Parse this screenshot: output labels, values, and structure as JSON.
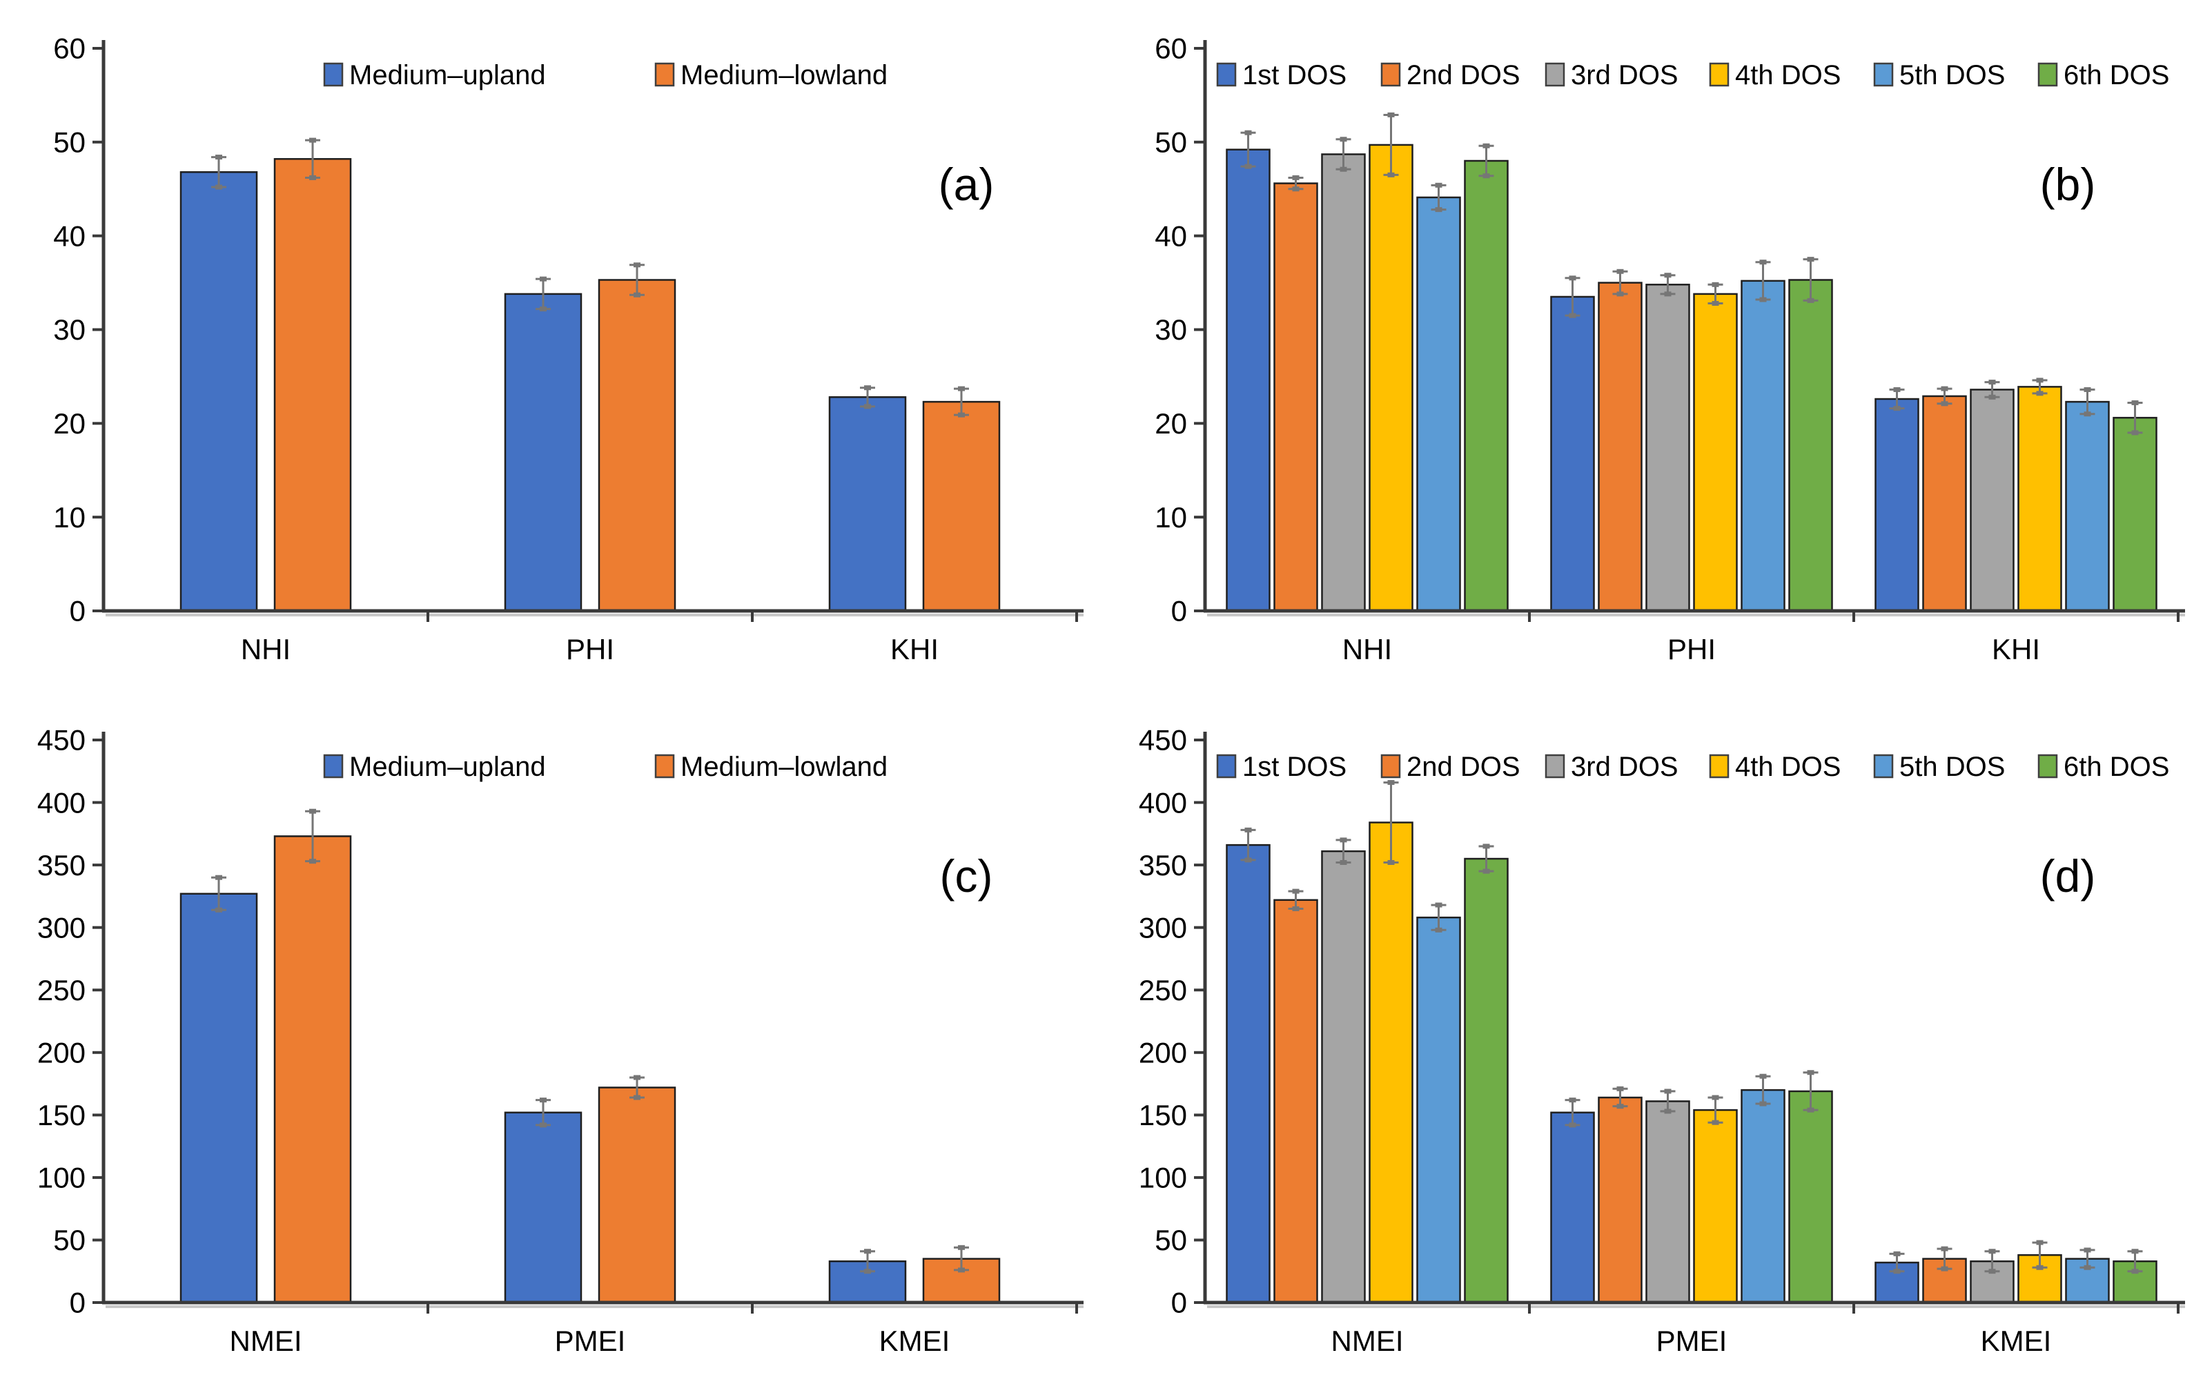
{
  "figure": {
    "background": "#ffffff",
    "theme": {
      "axis_color": "#3a3a3a",
      "axis_shadow_color": "#c8c8c8",
      "bar_stroke_color": "#1f1f1f",
      "error_bar_color": "#767676",
      "text_color": "#000000",
      "tick_font_size": 42,
      "category_font_size": 42,
      "legend_font_size": 40,
      "panel_label_font_size": 66
    }
  },
  "chart_data": [
    {
      "id": "a",
      "panel_label": "(a)",
      "type": "bar",
      "title": "",
      "xlabel": "",
      "ylabel": "",
      "categories": [
        "NHI",
        "PHI",
        "KHI"
      ],
      "ylim": [
        0,
        60
      ],
      "yticks": [
        0,
        10,
        20,
        30,
        40,
        50,
        60
      ],
      "grid": false,
      "legend_position": "top",
      "series": [
        {
          "name": "Medium–upland",
          "color": "#4472C4",
          "values": [
            46.8,
            33.8,
            22.8
          ],
          "errors": [
            1.6,
            1.6,
            1.0
          ]
        },
        {
          "name": "Medium–lowland",
          "color": "#ED7D31",
          "values": [
            48.2,
            35.3,
            22.3
          ],
          "errors": [
            2.0,
            1.6,
            1.4
          ]
        }
      ]
    },
    {
      "id": "b",
      "panel_label": "(b)",
      "type": "bar",
      "title": "",
      "xlabel": "",
      "ylabel": "",
      "categories": [
        "NHI",
        "PHI",
        "KHI"
      ],
      "ylim": [
        0,
        60
      ],
      "yticks": [
        0,
        10,
        20,
        30,
        40,
        50,
        60
      ],
      "grid": false,
      "legend_position": "top",
      "series": [
        {
          "name": "1st DOS",
          "color": "#4472C4",
          "values": [
            49.2,
            33.5,
            22.6
          ],
          "errors": [
            1.8,
            2.0,
            1.0
          ]
        },
        {
          "name": "2nd DOS",
          "color": "#ED7D31",
          "values": [
            45.6,
            35.0,
            22.9
          ],
          "errors": [
            0.6,
            1.2,
            0.8
          ]
        },
        {
          "name": "3rd DOS",
          "color": "#A5A5A5",
          "values": [
            48.7,
            34.8,
            23.6
          ],
          "errors": [
            1.6,
            1.0,
            0.8
          ]
        },
        {
          "name": "4th DOS",
          "color": "#FFC000",
          "values": [
            49.7,
            33.8,
            23.9
          ],
          "errors": [
            3.2,
            1.0,
            0.7
          ]
        },
        {
          "name": "5th DOS",
          "color": "#5B9BD5",
          "values": [
            44.1,
            35.2,
            22.3
          ],
          "errors": [
            1.3,
            2.0,
            1.3
          ]
        },
        {
          "name": "6th DOS",
          "color": "#70AD47",
          "values": [
            48.0,
            35.3,
            20.6
          ],
          "errors": [
            1.6,
            2.2,
            1.6
          ]
        }
      ]
    },
    {
      "id": "c",
      "panel_label": "(c)",
      "type": "bar",
      "title": "",
      "xlabel": "",
      "ylabel": "",
      "categories": [
        "NMEI",
        "PMEI",
        "KMEI"
      ],
      "ylim": [
        0,
        450
      ],
      "yticks": [
        0,
        50,
        100,
        150,
        200,
        250,
        300,
        350,
        400,
        450
      ],
      "grid": false,
      "legend_position": "top",
      "series": [
        {
          "name": "Medium–upland",
          "color": "#4472C4",
          "values": [
            327,
            152,
            33
          ],
          "errors": [
            13,
            10,
            8
          ]
        },
        {
          "name": "Medium–lowland",
          "color": "#ED7D31",
          "values": [
            373,
            172,
            35
          ],
          "errors": [
            20,
            8,
            9
          ]
        }
      ]
    },
    {
      "id": "d",
      "panel_label": "(d)",
      "type": "bar",
      "title": "",
      "xlabel": "",
      "ylabel": "",
      "categories": [
        "NMEI",
        "PMEI",
        "KMEI"
      ],
      "ylim": [
        0,
        450
      ],
      "yticks": [
        0,
        50,
        100,
        150,
        200,
        250,
        300,
        350,
        400,
        450
      ],
      "grid": false,
      "legend_position": "top",
      "series": [
        {
          "name": "1st DOS",
          "color": "#4472C4",
          "values": [
            366,
            152,
            32
          ],
          "errors": [
            12,
            10,
            7
          ]
        },
        {
          "name": "2nd DOS",
          "color": "#ED7D31",
          "values": [
            322,
            164,
            35
          ],
          "errors": [
            7,
            7,
            8
          ]
        },
        {
          "name": "3rd DOS",
          "color": "#A5A5A5",
          "values": [
            361,
            161,
            33
          ],
          "errors": [
            9,
            8,
            8
          ]
        },
        {
          "name": "4th DOS",
          "color": "#FFC000",
          "values": [
            384,
            154,
            38
          ],
          "errors": [
            32,
            10,
            10
          ]
        },
        {
          "name": "5th DOS",
          "color": "#5B9BD5",
          "values": [
            308,
            170,
            35
          ],
          "errors": [
            10,
            11,
            7
          ]
        },
        {
          "name": "6th DOS",
          "color": "#70AD47",
          "values": [
            355,
            169,
            33
          ],
          "errors": [
            10,
            15,
            8
          ]
        }
      ]
    }
  ]
}
